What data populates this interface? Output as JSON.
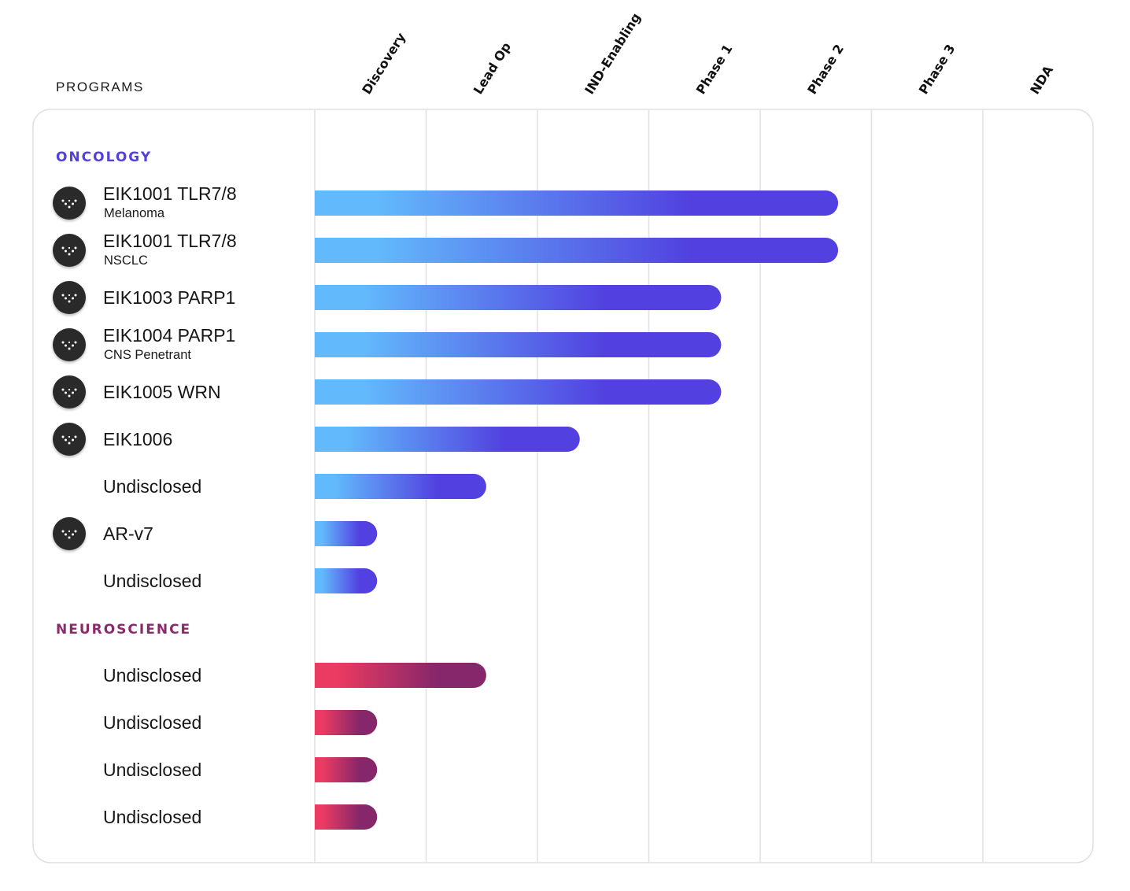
{
  "chart_data": {
    "type": "bar",
    "orientation": "horizontal",
    "title": "",
    "programs_header": "PROGRAMS",
    "stages": [
      "Discovery",
      "Lead Op",
      "IND-Enabling",
      "Phase 1",
      "Phase 2",
      "Phase 3",
      "NDA"
    ],
    "xlim": [
      0,
      7
    ],
    "grid": true,
    "sections": [
      {
        "name": "ONCOLOGY",
        "color": "#5240e0",
        "line_gradient": [
          "#6ac0f8",
          "#5240e0"
        ],
        "bar_gradient": [
          "#62b9fb",
          "#5240e0"
        ],
        "programs": [
          {
            "name": "EIK1001 TLR7/8",
            "sub": "Melanoma",
            "icon": "eikon-logo-icon",
            "progress": 4.7
          },
          {
            "name": "EIK1001 TLR7/8",
            "sub": "NSCLC",
            "icon": "eikon-logo-icon",
            "progress": 4.7
          },
          {
            "name": "EIK1003 PARP1",
            "sub": "",
            "icon": "eikon-logo-icon",
            "progress": 3.65
          },
          {
            "name": "EIK1004 PARP1",
            "sub": "CNS Penetrant",
            "icon": "eikon-logo-icon",
            "progress": 3.65
          },
          {
            "name": "EIK1005 WRN",
            "sub": "",
            "icon": "eikon-logo-icon",
            "progress": 3.65
          },
          {
            "name": "EIK1006",
            "sub": "",
            "icon": "eikon-logo-icon",
            "progress": 2.38
          },
          {
            "name": "Undisclosed",
            "sub": "",
            "icon": "",
            "progress": 1.54
          },
          {
            "name": "AR-v7",
            "sub": "",
            "icon": "eikon-logo-icon",
            "progress": 0.56
          },
          {
            "name": "Undisclosed",
            "sub": "",
            "icon": "",
            "progress": 0.56
          }
        ]
      },
      {
        "name": "NEUROSCIENCE",
        "color": "#8a2a6c",
        "line_gradient": [
          "#b0306e",
          "#7c2a6a"
        ],
        "bar_gradient": [
          "#ec3b62",
          "#85276a"
        ],
        "programs": [
          {
            "name": "Undisclosed",
            "sub": "",
            "icon": "",
            "progress": 1.54
          },
          {
            "name": "Undisclosed",
            "sub": "",
            "icon": "",
            "progress": 0.56
          },
          {
            "name": "Undisclosed",
            "sub": "",
            "icon": "",
            "progress": 0.56
          },
          {
            "name": "Undisclosed",
            "sub": "",
            "icon": "",
            "progress": 0.56
          }
        ]
      }
    ]
  }
}
